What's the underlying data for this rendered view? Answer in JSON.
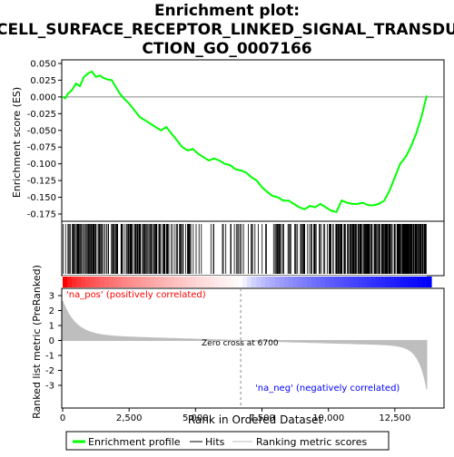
{
  "chart_data": {
    "type": "line",
    "title_lines": [
      "Enrichment plot:",
      "CELL_SURFACE_RECEPTOR_LINKED_SIGNAL_TRANSDU",
      "CTION_GO_0007166"
    ],
    "enrichment_panel": {
      "ylabel": "Enrichment score (ES)",
      "ylim": [
        -0.19,
        0.05
      ],
      "yticks": [
        "0.050",
        "0.025",
        "0.000",
        "-0.025",
        "-0.050",
        "-0.075",
        "-0.100",
        "-0.125",
        "-0.150",
        "-0.175"
      ],
      "ytick_values": [
        0.05,
        0.025,
        0.0,
        -0.025,
        -0.05,
        -0.075,
        -0.1,
        -0.125,
        -0.15,
        -0.175
      ],
      "series": [
        {
          "name": "Enrichment profile",
          "color": "#00ff00",
          "x": [
            0,
            100,
            200,
            350,
            500,
            650,
            800,
            950,
            1100,
            1250,
            1400,
            1550,
            1700,
            1850,
            2000,
            2150,
            2300,
            2500,
            2700,
            2900,
            3100,
            3300,
            3500,
            3700,
            3900,
            4100,
            4300,
            4500,
            4700,
            4900,
            5100,
            5300,
            5500,
            5700,
            5900,
            6100,
            6300,
            6500,
            6700,
            6900,
            7100,
            7300,
            7500,
            7700,
            7900,
            8100,
            8300,
            8500,
            8700,
            8900,
            9100,
            9300,
            9500,
            9700,
            9900,
            10100,
            10300,
            10500,
            10700,
            10900,
            11100,
            11300,
            11500,
            11700,
            11900,
            12100,
            12300,
            12500,
            12700,
            12900,
            13100,
            13300,
            13500,
            13700
          ],
          "y": [
            0.0,
            -0.002,
            0.005,
            0.01,
            0.02,
            0.016,
            0.03,
            0.035,
            0.038,
            0.03,
            0.032,
            0.028,
            0.026,
            0.025,
            0.015,
            0.005,
            -0.002,
            -0.01,
            -0.02,
            -0.03,
            -0.035,
            -0.04,
            -0.045,
            -0.05,
            -0.045,
            -0.055,
            -0.065,
            -0.075,
            -0.08,
            -0.078,
            -0.085,
            -0.09,
            -0.095,
            -0.092,
            -0.095,
            -0.1,
            -0.102,
            -0.108,
            -0.11,
            -0.113,
            -0.12,
            -0.125,
            -0.135,
            -0.142,
            -0.148,
            -0.15,
            -0.155,
            -0.155,
            -0.16,
            -0.165,
            -0.168,
            -0.163,
            -0.165,
            -0.16,
            -0.165,
            -0.17,
            -0.172,
            -0.155,
            -0.158,
            -0.16,
            -0.16,
            -0.158,
            -0.162,
            -0.162,
            -0.16,
            -0.155,
            -0.14,
            -0.12,
            -0.1,
            -0.09,
            -0.075,
            -0.055,
            -0.03,
            0.002
          ]
        }
      ]
    },
    "hits_panel": {
      "legend_label": "Hits",
      "hit_color": "#000000"
    },
    "ranking_panel": {
      "ylabel": "Ranked list metric (PreRanked)",
      "xlabel": "Rank in Ordered Dataset",
      "xlim": [
        0,
        14000
      ],
      "xticks": [
        "0",
        "2,500",
        "5,000",
        "7,500",
        "10,000",
        "12,500"
      ],
      "xtick_values": [
        0,
        2500,
        5000,
        7500,
        10000,
        12500
      ],
      "ylim": [
        -3.5,
        3.5
      ],
      "yticks": [
        "3",
        "2",
        "1",
        "0",
        "-1",
        "-2",
        "-3"
      ],
      "ytick_values": [
        3,
        2,
        1,
        0,
        -1,
        -2,
        -3
      ],
      "legend_label": "Ranking metric scores",
      "fill_color": "#bebebe",
      "zero_cross_label": "Zero cross at 6700",
      "zero_cross_rank": 6700,
      "pos_label": "'na_pos' (positively correlated)",
      "neg_label": "'na_neg' (negatively correlated)",
      "pos_color": "#ff0000",
      "neg_color": "#0000ff",
      "n_genes": 13700
    },
    "legend_labels": [
      "Enrichment profile",
      "Hits",
      "Ranking metric scores"
    ]
  }
}
